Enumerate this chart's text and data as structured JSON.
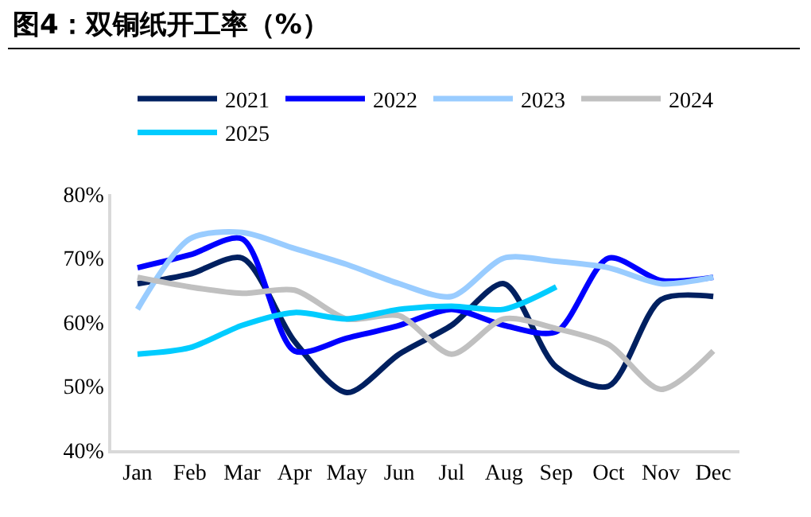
{
  "chart_data": {
    "type": "line",
    "title": "图4：双铜纸开工率（%）",
    "categories": [
      "Jan",
      "Feb",
      "Mar",
      "Apr",
      "May",
      "Jun",
      "Jul",
      "Aug",
      "Sep",
      "Oct",
      "Nov",
      "Dec"
    ],
    "series": [
      {
        "name": "2021",
        "color": "#002060",
        "values": [
          66,
          67.5,
          70,
          57,
          49,
          55,
          59.5,
          66,
          53,
          50,
          63.5,
          64
        ]
      },
      {
        "name": "2022",
        "color": "#0000ff",
        "values": [
          68.5,
          70.5,
          73,
          55.5,
          57.5,
          59.5,
          62,
          59.5,
          58.5,
          70,
          66.5,
          67
        ]
      },
      {
        "name": "2023",
        "color": "#99ccff",
        "values": [
          62,
          73,
          74,
          71.5,
          69,
          66,
          64,
          70,
          69.5,
          68.5,
          66,
          67
        ]
      },
      {
        "name": "2024",
        "color": "#c0c0c0",
        "values": [
          67,
          65.5,
          64.5,
          65,
          60.5,
          61,
          55,
          60.5,
          59,
          56.5,
          49.5,
          55.5
        ]
      },
      {
        "name": "2025",
        "color": "#00ccff",
        "values": [
          55,
          56,
          59.5,
          61.5,
          60.5,
          62,
          62.5,
          62,
          65.5,
          null,
          null,
          null
        ]
      }
    ],
    "ylim": [
      40,
      80
    ],
    "yticks": [
      {
        "value": 40,
        "label": "40%"
      },
      {
        "value": 50,
        "label": "50%"
      },
      {
        "value": 60,
        "label": "60%"
      },
      {
        "value": 70,
        "label": "70%"
      },
      {
        "value": 80,
        "label": "80%"
      }
    ],
    "grid": false,
    "legend": "top",
    "marker": "none",
    "line_style": "solid"
  }
}
